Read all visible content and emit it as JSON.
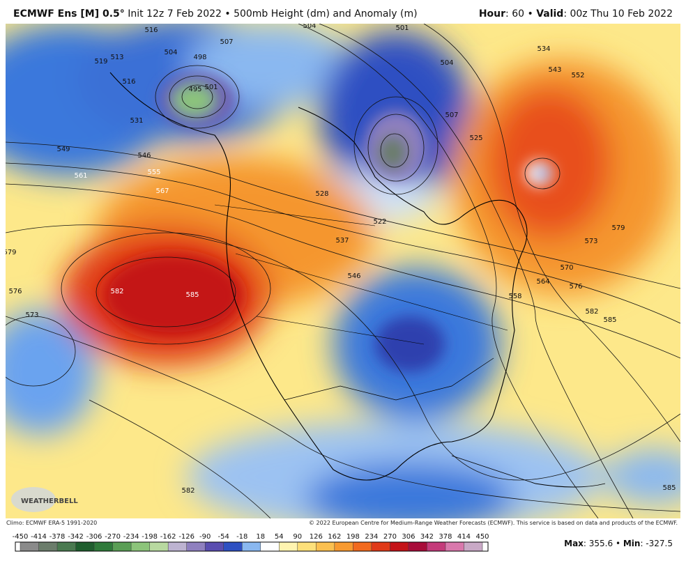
{
  "header": {
    "model": "ECMWF Ens [M] 0.5°",
    "init": "Init 12z 7 Feb 2022 • 500mb Height (dm) and Anomaly (m)",
    "hour_label": "Hour",
    "hour_value": ": 60 • ",
    "valid_label": "Valid",
    "valid_value": ": 00z Thu 10 Feb 2022"
  },
  "map": {
    "contour_labels": [
      513,
      516,
      519,
      516,
      504,
      498,
      495,
      501,
      507,
      531,
      549,
      546,
      555,
      561,
      567,
      582,
      585,
      579,
      576,
      573,
      528,
      522,
      537,
      504,
      501,
      504,
      507,
      525,
      534,
      543,
      552,
      579,
      573,
      570,
      576,
      564,
      558,
      582,
      585,
      582,
      585,
      546
    ],
    "logo": "WEATHERBELL"
  },
  "footer": {
    "climo": "Climo: ECMWF ERA-5 1991-2020",
    "copyright": "© 2022 European Centre for Medium-Range Weather Forecasts (ECMWF). This service is based on data and products of the ECMWF."
  },
  "colorbar": {
    "ticks": [
      -450,
      -414,
      -378,
      -342,
      -306,
      -270,
      -234,
      -198,
      -162,
      -126,
      -90,
      -54,
      -18,
      18,
      54,
      90,
      126,
      162,
      198,
      234,
      270,
      306,
      342,
      378,
      414,
      450
    ],
    "colors": [
      "#8a8a8a",
      "#6b7d6b",
      "#4a7a50",
      "#1f5e2e",
      "#2f7a3a",
      "#5a9e55",
      "#8cc47a",
      "#b8d9a0",
      "#bdb3d1",
      "#8f80bf",
      "#5a4db0",
      "#2e50c2",
      "#8ab8f0",
      "#ffffff",
      "#fff4b0",
      "#fde07a",
      "#fbc050",
      "#f89a30",
      "#f26a1e",
      "#e03a18",
      "#c41218",
      "#a80c3a",
      "#c43a7a",
      "#d978ac",
      "#c9a9c6"
    ]
  },
  "stats": {
    "max_label": "Max",
    "max_value": ": 355.6 • ",
    "min_label": "Min",
    "min_value": ": -327.5"
  }
}
